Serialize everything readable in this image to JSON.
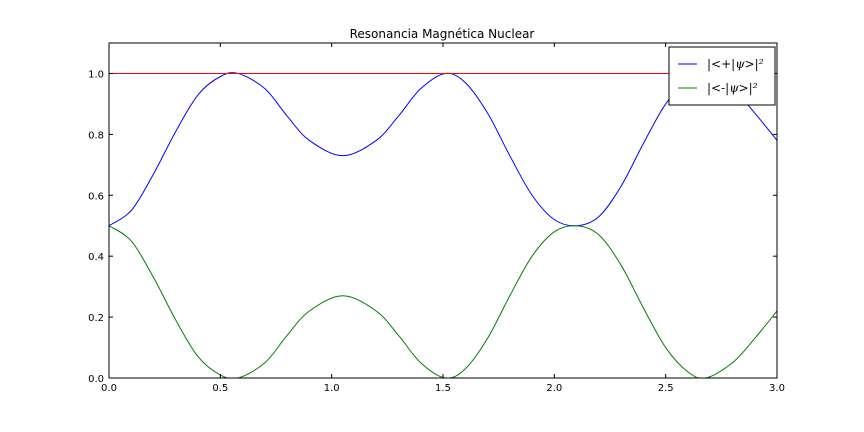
{
  "chart_data": {
    "type": "line",
    "title": "Resonancia Magnética Nuclear",
    "xlabel": "",
    "ylabel": "",
    "xlim": [
      0.0,
      3.0
    ],
    "ylim": [
      0.0,
      1.1
    ],
    "xticks": [
      0.0,
      0.5,
      1.0,
      1.5,
      2.0,
      2.5,
      3.0
    ],
    "xtick_labels": [
      "0.0",
      "0.5",
      "1.0",
      "1.5",
      "2.0",
      "2.5",
      "3.0"
    ],
    "yticks": [
      0.0,
      0.2,
      0.4,
      0.6,
      0.8,
      1.0
    ],
    "ytick_labels": [
      "0.0",
      "0.2",
      "0.4",
      "0.6",
      "0.8",
      "1.0"
    ],
    "grid": false,
    "legend_position": "top-right",
    "series": [
      {
        "name": "|<+|ψ>|²",
        "color": "#0000ff",
        "x": [
          0.0,
          0.1,
          0.2,
          0.3,
          0.4,
          0.5,
          0.58,
          0.7,
          0.8,
          0.9,
          1.05,
          1.2,
          1.3,
          1.4,
          1.51,
          1.6,
          1.7,
          1.8,
          1.9,
          2.0,
          2.1,
          2.2,
          2.3,
          2.4,
          2.5,
          2.6,
          2.68,
          2.8,
          2.9,
          3.0
        ],
        "y": [
          0.5,
          0.55,
          0.67,
          0.81,
          0.93,
          0.99,
          1.0,
          0.95,
          0.86,
          0.78,
          0.73,
          0.78,
          0.86,
          0.95,
          1.0,
          0.97,
          0.87,
          0.73,
          0.6,
          0.52,
          0.5,
          0.53,
          0.63,
          0.77,
          0.9,
          0.98,
          1.0,
          0.95,
          0.87,
          0.78
        ]
      },
      {
        "name": "|<-|ψ>|²",
        "color": "#008000",
        "x": [
          0.0,
          0.1,
          0.2,
          0.3,
          0.4,
          0.5,
          0.58,
          0.7,
          0.8,
          0.9,
          1.05,
          1.2,
          1.3,
          1.4,
          1.51,
          1.6,
          1.7,
          1.8,
          1.9,
          2.0,
          2.1,
          2.2,
          2.3,
          2.4,
          2.5,
          2.6,
          2.68,
          2.8,
          2.9,
          3.0
        ],
        "y": [
          0.5,
          0.45,
          0.33,
          0.19,
          0.07,
          0.01,
          0.0,
          0.05,
          0.14,
          0.22,
          0.27,
          0.22,
          0.14,
          0.05,
          0.0,
          0.03,
          0.13,
          0.27,
          0.4,
          0.48,
          0.5,
          0.47,
          0.37,
          0.23,
          0.1,
          0.02,
          0.0,
          0.05,
          0.13,
          0.22
        ]
      },
      {
        "color": "#ff0000",
        "x": [
          0.0,
          3.0
        ],
        "y": [
          1.0,
          1.0
        ]
      }
    ]
  }
}
